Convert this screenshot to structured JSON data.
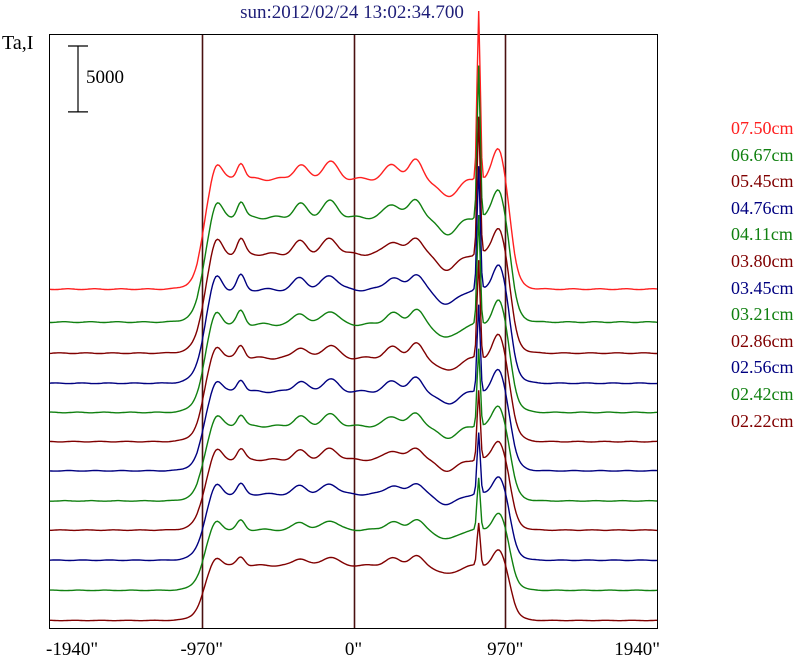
{
  "chart_data": {
    "type": "line",
    "title": "sun:2012/02/24 13:02:34.700",
    "ylabel": "Ta,I",
    "xlabel": "",
    "x_ticks": [
      {
        "value": -1940,
        "label": "-1940\""
      },
      {
        "value": -970,
        "label": "-970\""
      },
      {
        "value": 0,
        "label": "0\""
      },
      {
        "value": 970,
        "label": "970\""
      },
      {
        "value": 1940,
        "label": "1940\""
      }
    ],
    "xlim": [
      -1940,
      1940
    ],
    "ylim": [
      0,
      63000
    ],
    "vertical_markers": [
      -970,
      0,
      970
    ],
    "scale_bar": {
      "value": 5000,
      "label": "5000"
    },
    "legend_placement": "right",
    "grid": false,
    "series": [
      {
        "name": "07.50cm",
        "color": "#ff2020",
        "offset": 36000,
        "amplitude": 1.0
      },
      {
        "name": "06.67cm",
        "color": "#108010",
        "offset": 32500,
        "amplitude": 0.95
      },
      {
        "name": "05.45cm",
        "color": "#800000",
        "offset": 29200,
        "amplitude": 0.9
      },
      {
        "name": "04.76cm",
        "color": "#000080",
        "offset": 26000,
        "amplitude": 0.85
      },
      {
        "name": "04.11cm",
        "color": "#108010",
        "offset": 22900,
        "amplitude": 0.8
      },
      {
        "name": "03.80cm",
        "color": "#800000",
        "offset": 19800,
        "amplitude": 0.76
      },
      {
        "name": "03.45cm",
        "color": "#000080",
        "offset": 16700,
        "amplitude": 0.72
      },
      {
        "name": "03.21cm",
        "color": "#108010",
        "offset": 13500,
        "amplitude": 0.68
      },
      {
        "name": "02.86cm",
        "color": "#800000",
        "offset": 10400,
        "amplitude": 0.64
      },
      {
        "name": "02.56cm",
        "color": "#000080",
        "offset": 7200,
        "amplitude": 0.6
      },
      {
        "name": "02.42cm",
        "color": "#108010",
        "offset": 4000,
        "amplitude": 0.55
      },
      {
        "name": "02.22cm",
        "color": "#800000",
        "offset": 800,
        "amplitude": 0.5
      }
    ]
  }
}
